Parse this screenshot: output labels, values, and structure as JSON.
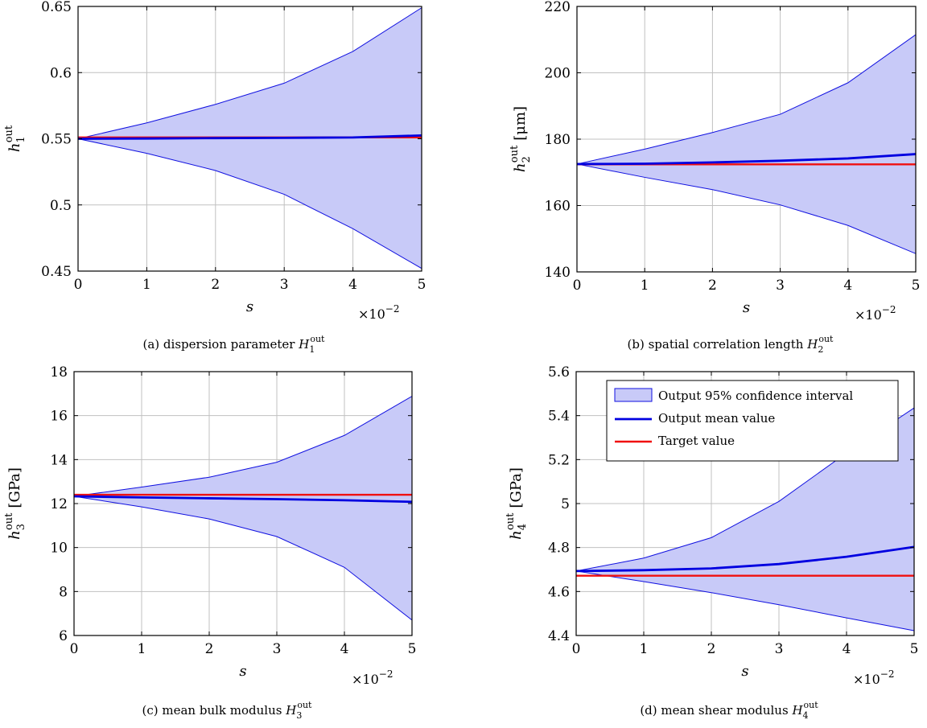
{
  "chart_data": [
    {
      "type": "area",
      "id": "a",
      "caption": "(a) dispersion parameter H1out",
      "caption_parts": {
        "prefix": "(a) dispersion parameter ",
        "var": "H",
        "sub": "1",
        "sup": "out"
      },
      "ylabel_parts": {
        "var": "h",
        "sub": "1",
        "sup": "out",
        "unit": ""
      },
      "xlabel": "s",
      "x_multiplier": "×10−2",
      "x": [
        0,
        1,
        2,
        3,
        4,
        5
      ],
      "xlim": [
        0,
        5
      ],
      "ylim": [
        0.45,
        0.65
      ],
      "yticks": [
        0.45,
        0.5,
        0.55,
        0.6,
        0.65
      ],
      "ytick_labels": [
        "0.45",
        "0.5",
        "0.55",
        "0.6",
        "0.65"
      ],
      "series": [
        {
          "name": "Output 95% confidence interval",
          "kind": "band",
          "upper": [
            0.55,
            0.562,
            0.576,
            0.592,
            0.616,
            0.649
          ],
          "lower": [
            0.55,
            0.539,
            0.526,
            0.508,
            0.482,
            0.452
          ]
        },
        {
          "name": "Output mean value",
          "kind": "line",
          "values": [
            0.55,
            0.5502,
            0.5505,
            0.5507,
            0.551,
            0.5525
          ]
        },
        {
          "name": "Target value",
          "kind": "line",
          "values": [
            0.551,
            0.551,
            0.551,
            0.551,
            0.551,
            0.551
          ]
        }
      ]
    },
    {
      "type": "area",
      "id": "b",
      "caption": "(b) spatial correlation length H2out",
      "caption_parts": {
        "prefix": "(b) spatial correlation length ",
        "var": "H",
        "sub": "2",
        "sup": "out"
      },
      "ylabel_parts": {
        "var": "h",
        "sub": "2",
        "sup": "out",
        "unit": "[μm]"
      },
      "xlabel": "s",
      "x_multiplier": "×10−2",
      "x": [
        0,
        1,
        2,
        3,
        4,
        5
      ],
      "xlim": [
        0,
        5
      ],
      "ylim": [
        140,
        220
      ],
      "yticks": [
        140,
        160,
        180,
        200,
        220
      ],
      "ytick_labels": [
        "140",
        "160",
        "180",
        "200",
        "220"
      ],
      "series": [
        {
          "name": "Output 95% confidence interval",
          "kind": "band",
          "upper": [
            172.5,
            177,
            182,
            187.5,
            197,
            211.5
          ],
          "lower": [
            172.5,
            168.5,
            164.8,
            160.2,
            154,
            145.5
          ]
        },
        {
          "name": "Output mean value",
          "kind": "line",
          "values": [
            172.5,
            172.6,
            173.0,
            173.5,
            174.2,
            175.5
          ]
        },
        {
          "name": "Target value",
          "kind": "line",
          "values": [
            172.4,
            172.4,
            172.4,
            172.4,
            172.4,
            172.4
          ]
        }
      ]
    },
    {
      "type": "area",
      "id": "c",
      "caption": "(c) mean bulk modulus H3out",
      "caption_parts": {
        "prefix": "(c) mean bulk modulus ",
        "var": "H",
        "sub": "3",
        "sup": "out"
      },
      "ylabel_parts": {
        "var": "h",
        "sub": "3",
        "sup": "out",
        "unit": "[GPa]"
      },
      "xlabel": "s",
      "x_multiplier": "×10−2",
      "x": [
        0,
        1,
        2,
        3,
        4,
        5
      ],
      "xlim": [
        0,
        5
      ],
      "ylim": [
        6,
        18
      ],
      "yticks": [
        6,
        8,
        10,
        12,
        14,
        16,
        18
      ],
      "ytick_labels": [
        "6",
        "8",
        "10",
        "12",
        "14",
        "16",
        "18"
      ],
      "series": [
        {
          "name": "Output 95% confidence interval",
          "kind": "band",
          "upper": [
            12.33,
            12.75,
            13.2,
            13.88,
            15.1,
            16.88
          ],
          "lower": [
            12.33,
            11.85,
            11.3,
            10.5,
            9.1,
            6.7
          ]
        },
        {
          "name": "Output mean value",
          "kind": "line",
          "values": [
            12.33,
            12.28,
            12.24,
            12.2,
            12.15,
            12.08
          ]
        },
        {
          "name": "Target value",
          "kind": "line",
          "values": [
            12.4,
            12.4,
            12.4,
            12.4,
            12.4,
            12.4
          ]
        }
      ]
    },
    {
      "type": "area",
      "id": "d",
      "caption": "(d) mean shear modulus H4out",
      "caption_parts": {
        "prefix": "(d) mean shear modulus ",
        "var": "H",
        "sub": "4",
        "sup": "out"
      },
      "ylabel_parts": {
        "var": "h",
        "sub": "4",
        "sup": "out",
        "unit": "[GPa]"
      },
      "xlabel": "s",
      "x_multiplier": "×10−2",
      "x": [
        0,
        1,
        2,
        3,
        4,
        5
      ],
      "xlim": [
        0,
        5
      ],
      "ylim": [
        4.4,
        5.6
      ],
      "yticks": [
        4.4,
        4.6,
        4.8,
        5.0,
        5.2,
        5.4,
        5.6
      ],
      "ytick_labels": [
        "4.4",
        "4.6",
        "4.8",
        "5",
        "5.2",
        "5.4",
        "5.6"
      ],
      "legend": {
        "position": "top-right",
        "entries": [
          "Output 95% confidence interval",
          "Output mean value",
          "Target value"
        ]
      },
      "series": [
        {
          "name": "Output 95% confidence interval",
          "kind": "band",
          "upper": [
            4.693,
            4.752,
            4.845,
            5.01,
            5.23,
            5.435
          ],
          "lower": [
            4.693,
            4.645,
            4.595,
            4.54,
            4.48,
            4.422
          ]
        },
        {
          "name": "Output mean value",
          "kind": "line",
          "values": [
            4.693,
            4.697,
            4.705,
            4.725,
            4.758,
            4.803
          ]
        },
        {
          "name": "Target value",
          "kind": "line",
          "values": [
            4.672,
            4.672,
            4.672,
            4.672,
            4.672,
            4.672
          ]
        }
      ]
    }
  ],
  "colors": {
    "band_fill": "#c8caf8",
    "band_edge": "#1010e0",
    "mean": "#0000e0",
    "target": "#f01010",
    "grid": "#c0c0c0"
  }
}
